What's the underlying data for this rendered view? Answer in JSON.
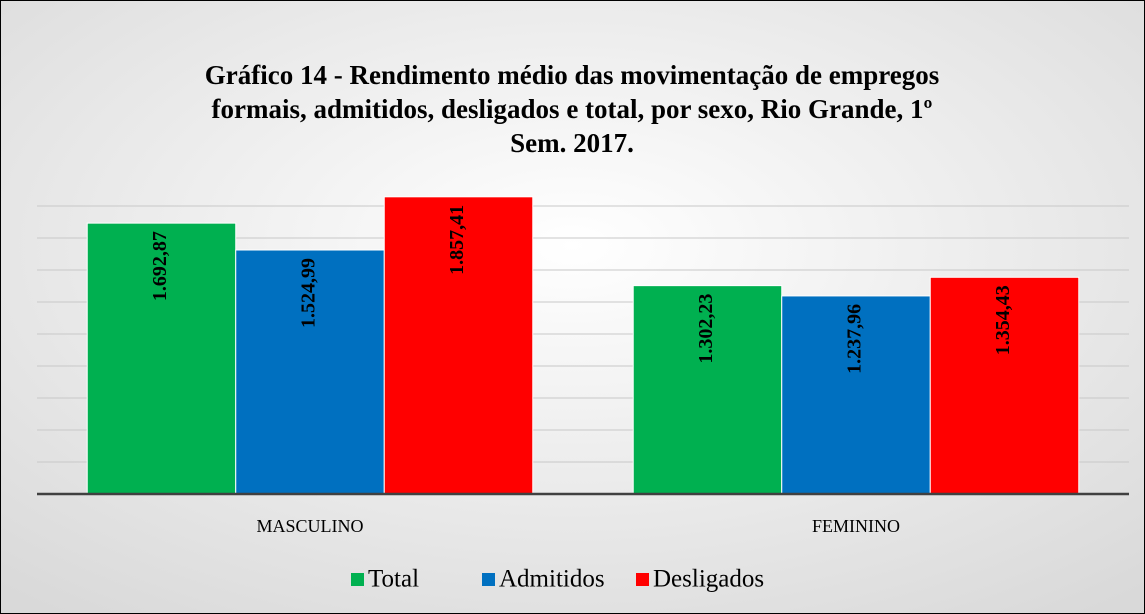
{
  "chart_data": {
    "type": "bar",
    "title": [
      "Gráfico 14 - Rendimento médio das movimentação de empregos",
      "formais, admitidos, desligados e total, por sexo, Rio Grande, 1º",
      "Sem. 2017."
    ],
    "categories": [
      "MASCULINO",
      "FEMININO"
    ],
    "series": [
      {
        "name": "Total",
        "color": "#00b050",
        "values": [
          1692.87,
          1302.23
        ],
        "value_labels": [
          "1.692,87",
          "1.302,23"
        ]
      },
      {
        "name": "Admitidos",
        "color": "#0070c0",
        "values": [
          1524.99,
          1237.96
        ],
        "value_labels": [
          "1.524,99",
          "1.237,96"
        ]
      },
      {
        "name": "Desligados",
        "color": "#ff0000",
        "values": [
          1857.41,
          1354.43
        ],
        "value_labels": [
          "1.857,41",
          "1.354,43"
        ]
      }
    ],
    "ylim": [
      0,
      2000
    ],
    "yticks": [
      0,
      200,
      400,
      600,
      800,
      1000,
      1200,
      1400,
      1600,
      1800
    ],
    "grid": true
  }
}
